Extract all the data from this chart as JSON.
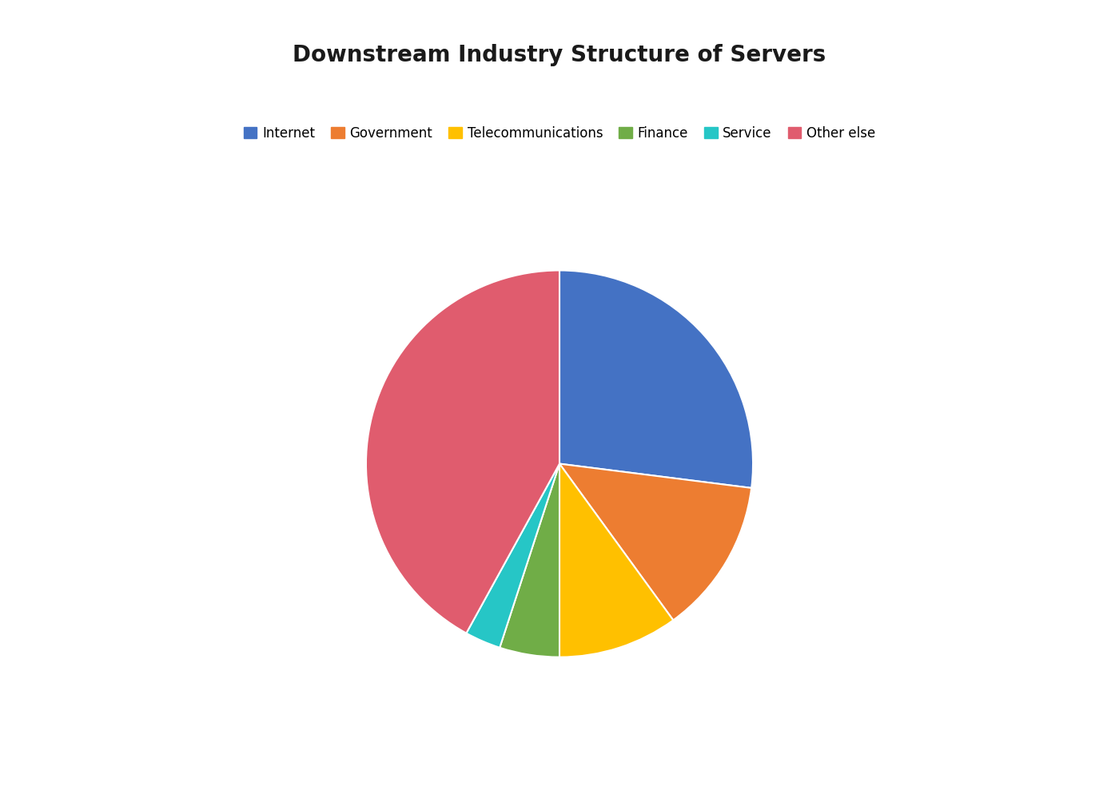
{
  "title": "Downstream Industry Structure of Servers",
  "title_fontsize": 20,
  "title_fontweight": "bold",
  "labels": [
    "Internet",
    "Government",
    "Telecommunications",
    "Finance",
    "Service",
    "Other else"
  ],
  "values": [
    27,
    13,
    10,
    5,
    3,
    42
  ],
  "colors": [
    "#4472C4",
    "#ED7D31",
    "#FFC000",
    "#70AD47",
    "#26C6C6",
    "#E05C6E"
  ],
  "startangle": 90,
  "background_color": "#FFFFFF",
  "legend_fontsize": 12,
  "figsize": [
    14.0,
    9.84
  ],
  "dpi": 100
}
